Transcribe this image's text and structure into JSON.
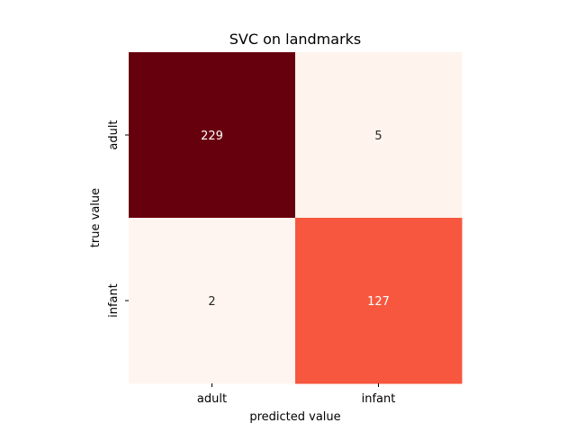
{
  "chart_data": {
    "type": "heatmap",
    "title": "SVC on landmarks",
    "xlabel": "predicted value",
    "ylabel": "true value",
    "x_categories": [
      "adult",
      "infant"
    ],
    "y_categories": [
      "adult",
      "infant"
    ],
    "values": [
      [
        229,
        5
      ],
      [
        2,
        127
      ]
    ],
    "colormap": "Reds",
    "color_range": [
      2,
      229
    ],
    "colorbar": false,
    "grid": false
  }
}
